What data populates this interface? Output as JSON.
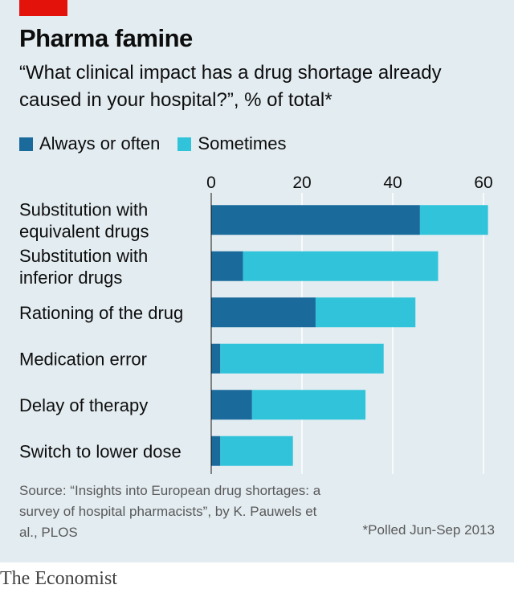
{
  "header": {
    "title": "Pharma famine",
    "subtitle": "“What clinical impact has a drug shortage already caused in your hospital?”, % of total*"
  },
  "colors": {
    "background": "#e3ecf1",
    "accent_red": "#e3120b",
    "always_or_often": "#1a6b9c",
    "sometimes": "#31c3d9",
    "grid": "#ffffff",
    "text": "#0d0d0d"
  },
  "chart_data": {
    "type": "bar",
    "orientation": "horizontal",
    "stacked": true,
    "categories": [
      "Substitution with equivalent drugs",
      "Substitution with inferior drugs",
      "Rationing of the drug",
      "Medication error",
      "Delay of therapy",
      "Switch to lower dose"
    ],
    "category_lines": [
      [
        "Substitution with",
        "equivalent drugs"
      ],
      [
        "Substitution with",
        "inferior drugs"
      ],
      [
        "Rationing of the drug"
      ],
      [
        "Medication error"
      ],
      [
        "Delay of therapy"
      ],
      [
        "Switch to lower dose"
      ]
    ],
    "series": [
      {
        "name": "Always or often",
        "values": [
          46,
          7,
          23,
          2,
          9,
          2
        ]
      },
      {
        "name": "Sometimes",
        "values": [
          15,
          43,
          22,
          36,
          25,
          16
        ]
      }
    ],
    "xlim": [
      0,
      60
    ],
    "xticks": [
      0,
      20,
      40,
      60
    ],
    "tick_labels": [
      "0",
      "20",
      "40",
      "60"
    ],
    "xaxis_position": "top",
    "grid": true,
    "legend_position": "top-left"
  },
  "footer": {
    "source": "Source: “Insights into European drug shortages: a survey of hospital pharmacists”, by K. Pauwels et al., PLOS",
    "footnote": "*Polled Jun-Sep 2013",
    "brand": "The Economist"
  }
}
